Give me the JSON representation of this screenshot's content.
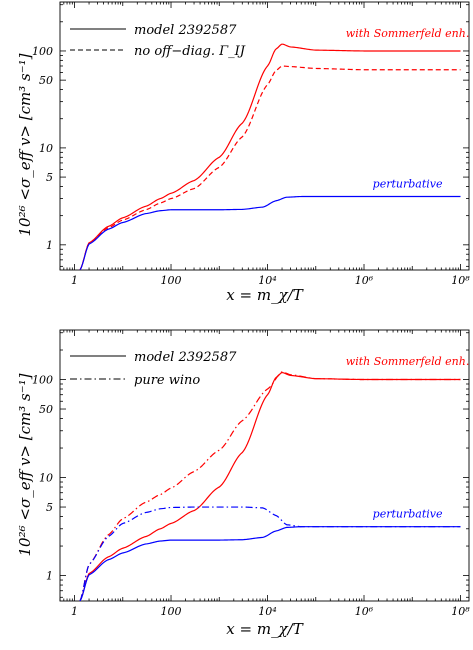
{
  "chart_data": [
    {
      "type": "line",
      "xscale": "log",
      "yscale": "log",
      "xlim": [
        0.5,
        150000000
      ],
      "ylim": [
        0.55,
        320
      ],
      "xticklabels": [
        "1",
        "100",
        "10⁴",
        "10⁶",
        "10⁸"
      ],
      "yticklabels": [
        "1",
        "5",
        "10",
        "50",
        "100"
      ],
      "xlabel": "x = m_χ/T",
      "ylabel": "10²⁶ <σ_eff v>  [cm³ s⁻¹]",
      "legend_position": "top-left",
      "legend": [
        {
          "label": "model 2392587",
          "dash": "solid"
        },
        {
          "label": "no off−diag. Γ_IJ",
          "dash": "dashed"
        }
      ],
      "annotations": [
        {
          "text": "with Sommerfeld enh.",
          "color": "#ff0000",
          "at_x": 8000000,
          "at_y": 140
        },
        {
          "text": "perturbative",
          "color": "#0000ff",
          "at_x": 8000000,
          "at_y": 3.9
        }
      ],
      "series": [
        {
          "color": "#ff0000",
          "dash": "solid",
          "x": [
            1.3,
            2,
            5,
            10,
            30,
            60,
            100,
            300,
            1000,
            3000,
            10000,
            15000,
            20000,
            30000,
            100000,
            1000000,
            100000000
          ],
          "y": [
            0.55,
            1.05,
            1.55,
            1.9,
            2.5,
            3.0,
            3.4,
            4.6,
            8.0,
            18,
            70,
            105,
            118,
            110,
            102,
            100,
            100
          ]
        },
        {
          "color": "#ff0000",
          "dash": "dashed",
          "x": [
            1.3,
            2,
            5,
            10,
            30,
            60,
            100,
            300,
            1000,
            3000,
            10000,
            15000,
            20000,
            30000,
            100000,
            1000000,
            100000000
          ],
          "y": [
            0.55,
            1.05,
            1.5,
            1.8,
            2.3,
            2.7,
            3.0,
            3.8,
            6.3,
            13,
            45,
            63,
            70,
            69,
            66,
            64,
            64
          ]
        },
        {
          "color": "#0000ff",
          "dash": "solid",
          "x": [
            1.3,
            2,
            5,
            10,
            30,
            60,
            100,
            300,
            1000,
            3000,
            8000,
            15000,
            25000,
            50000,
            1000000,
            100000000
          ],
          "y": [
            0.55,
            1.02,
            1.45,
            1.7,
            2.1,
            2.25,
            2.3,
            2.3,
            2.3,
            2.32,
            2.45,
            2.85,
            3.1,
            3.15,
            3.15,
            3.15
          ]
        }
      ]
    },
    {
      "type": "line",
      "xscale": "log",
      "yscale": "log",
      "xlim": [
        0.5,
        150000000
      ],
      "ylim": [
        0.55,
        320
      ],
      "xticklabels": [
        "1",
        "100",
        "10⁴",
        "10⁶",
        "10⁸"
      ],
      "yticklabels": [
        "1",
        "5",
        "10",
        "50",
        "100"
      ],
      "xlabel": "x = m_χ/T",
      "ylabel": "10²⁶ <σ_eff v>  [cm³ s⁻¹]",
      "legend_position": "top-left",
      "legend": [
        {
          "label": "model 2392587",
          "dash": "solid"
        },
        {
          "label": "pure wino",
          "dash": "dashdot"
        }
      ],
      "annotations": [
        {
          "text": "with Sommerfeld enh.",
          "color": "#ff0000",
          "at_x": 8000000,
          "at_y": 140
        },
        {
          "text": "perturbative",
          "color": "#0000ff",
          "at_x": 8000000,
          "at_y": 3.9
        }
      ],
      "series": [
        {
          "color": "#ff0000",
          "dash": "solid",
          "x": [
            1.3,
            2,
            5,
            10,
            30,
            60,
            100,
            300,
            1000,
            3000,
            10000,
            15000,
            20000,
            30000,
            100000,
            1000000,
            100000000
          ],
          "y": [
            0.55,
            1.05,
            1.55,
            1.9,
            2.5,
            3.0,
            3.4,
            4.6,
            8.0,
            18,
            70,
            105,
            118,
            110,
            102,
            100,
            100
          ]
        },
        {
          "color": "#ff0000",
          "dash": "dashdot",
          "x": [
            1.3,
            2,
            5,
            10,
            30,
            60,
            100,
            300,
            1000,
            3000,
            10000,
            20000,
            30000,
            100000,
            1000000,
            100000000
          ],
          "y": [
            0.55,
            1.3,
            2.6,
            3.8,
            5.6,
            6.7,
            7.8,
            11.5,
            19,
            38,
            80,
            120,
            112,
            102,
            100,
            100
          ]
        },
        {
          "color": "#0000ff",
          "dash": "solid",
          "x": [
            1.3,
            2,
            5,
            10,
            30,
            60,
            100,
            300,
            1000,
            3000,
            8000,
            15000,
            25000,
            50000,
            1000000,
            100000000
          ],
          "y": [
            0.55,
            1.02,
            1.45,
            1.7,
            2.1,
            2.25,
            2.3,
            2.3,
            2.3,
            2.32,
            2.45,
            2.85,
            3.1,
            3.15,
            3.15,
            3.15
          ]
        },
        {
          "color": "#0000ff",
          "dash": "dashdot",
          "x": [
            1.3,
            2,
            5,
            10,
            30,
            60,
            100,
            300,
            1000,
            3000,
            8000,
            15000,
            25000,
            50000,
            1000000,
            100000000
          ],
          "y": [
            0.55,
            1.3,
            2.5,
            3.4,
            4.4,
            4.8,
            4.95,
            5.0,
            5.0,
            5.0,
            4.9,
            4.1,
            3.3,
            3.15,
            3.15,
            3.15
          ]
        }
      ]
    }
  ]
}
